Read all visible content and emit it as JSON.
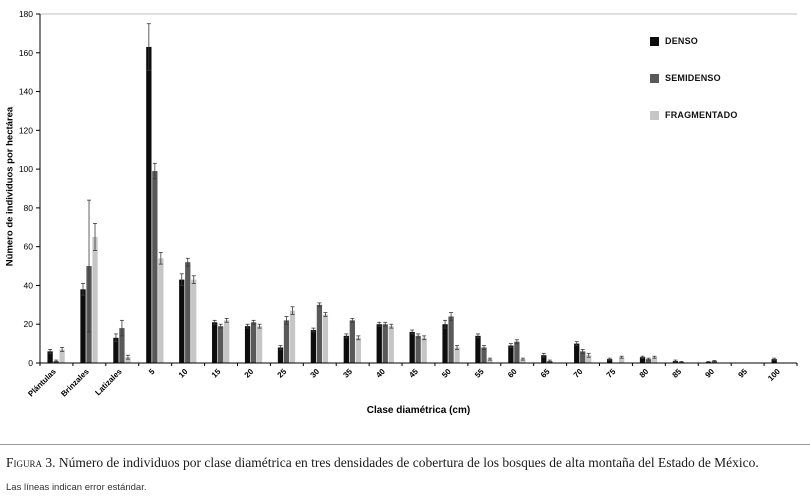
{
  "figure": {
    "caption_label": "Figura 3.",
    "caption_text": "Número de individuos por clase diamétrica en tres densidades de cobertura de los bosques de alta montaña del Estado de México.",
    "note": "Las líneas indican error estándar."
  },
  "chart_data": {
    "type": "bar",
    "title": "",
    "xlabel": "Clase diamétrica (cm)",
    "ylabel": "Número de individuos por hectárea",
    "ylim": [
      0,
      180
    ],
    "ytick_step": 20,
    "grid": false,
    "legend_position": "top-right",
    "error_bars": "standard error",
    "categories": [
      "Plántulas",
      "Brinzales",
      "Latizales",
      "5",
      "10",
      "15",
      "20",
      "25",
      "30",
      "35",
      "40",
      "45",
      "50",
      "55",
      "60",
      "65",
      "70",
      "75",
      "80",
      "85",
      "90",
      "95",
      "100"
    ],
    "series": [
      {
        "name": "DENSO",
        "color": "#0d0d0d",
        "values": [
          6,
          38,
          13,
          163,
          43,
          21,
          19,
          8,
          17,
          14,
          20,
          16,
          20,
          14,
          9,
          4,
          10,
          2,
          3,
          1,
          0.5,
          0,
          2
        ],
        "errors": [
          1,
          3,
          2,
          12,
          3,
          1,
          1,
          1,
          1,
          1,
          1,
          1,
          2,
          1,
          1,
          1,
          1,
          0.5,
          0.5,
          0.5,
          0.3,
          0,
          0.5
        ]
      },
      {
        "name": "SEMIDENSO",
        "color": "#595959",
        "values": [
          1,
          50,
          18,
          99,
          52,
          19,
          21,
          22,
          30,
          22,
          20,
          14,
          24,
          8,
          11,
          1,
          6,
          0,
          2,
          0.5,
          1,
          0,
          0
        ],
        "errors": [
          0.5,
          34,
          4,
          4,
          2,
          1,
          1,
          2,
          1,
          1,
          1,
          1,
          2,
          1,
          1,
          0.5,
          1,
          0,
          0.5,
          0.3,
          0.3,
          0,
          0
        ]
      },
      {
        "name": "FRAGMENTADO",
        "color": "#c6c6c6",
        "values": [
          7,
          65,
          3,
          54,
          43,
          22,
          19,
          27,
          25,
          13,
          19,
          13,
          8,
          2,
          2,
          0,
          4,
          3,
          3,
          0,
          0,
          0,
          0
        ],
        "errors": [
          1,
          7,
          1,
          3,
          2,
          1,
          1,
          2,
          1,
          1,
          1,
          1,
          1,
          0.5,
          0.5,
          0,
          1,
          0.5,
          0.5,
          0,
          0,
          0,
          0
        ]
      }
    ]
  }
}
